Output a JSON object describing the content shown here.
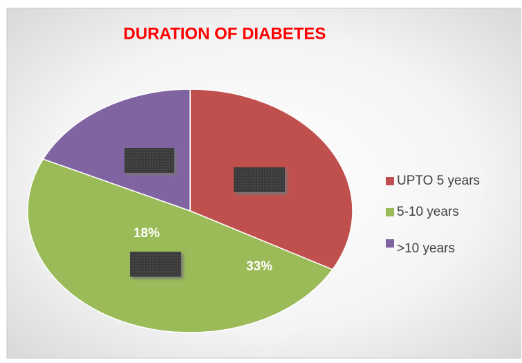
{
  "chart_data": {
    "type": "pie",
    "title": "DURATION OF DIABETES",
    "categories": [
      "UPTO 5 years",
      "5-10 years",
      ">10 years"
    ],
    "values": [
      33,
      49,
      18
    ],
    "value_labels": [
      "33%",
      null,
      "18%"
    ],
    "colors": [
      "#c0504d",
      "#9bbb59",
      "#8064a2"
    ],
    "legend": "right"
  }
}
